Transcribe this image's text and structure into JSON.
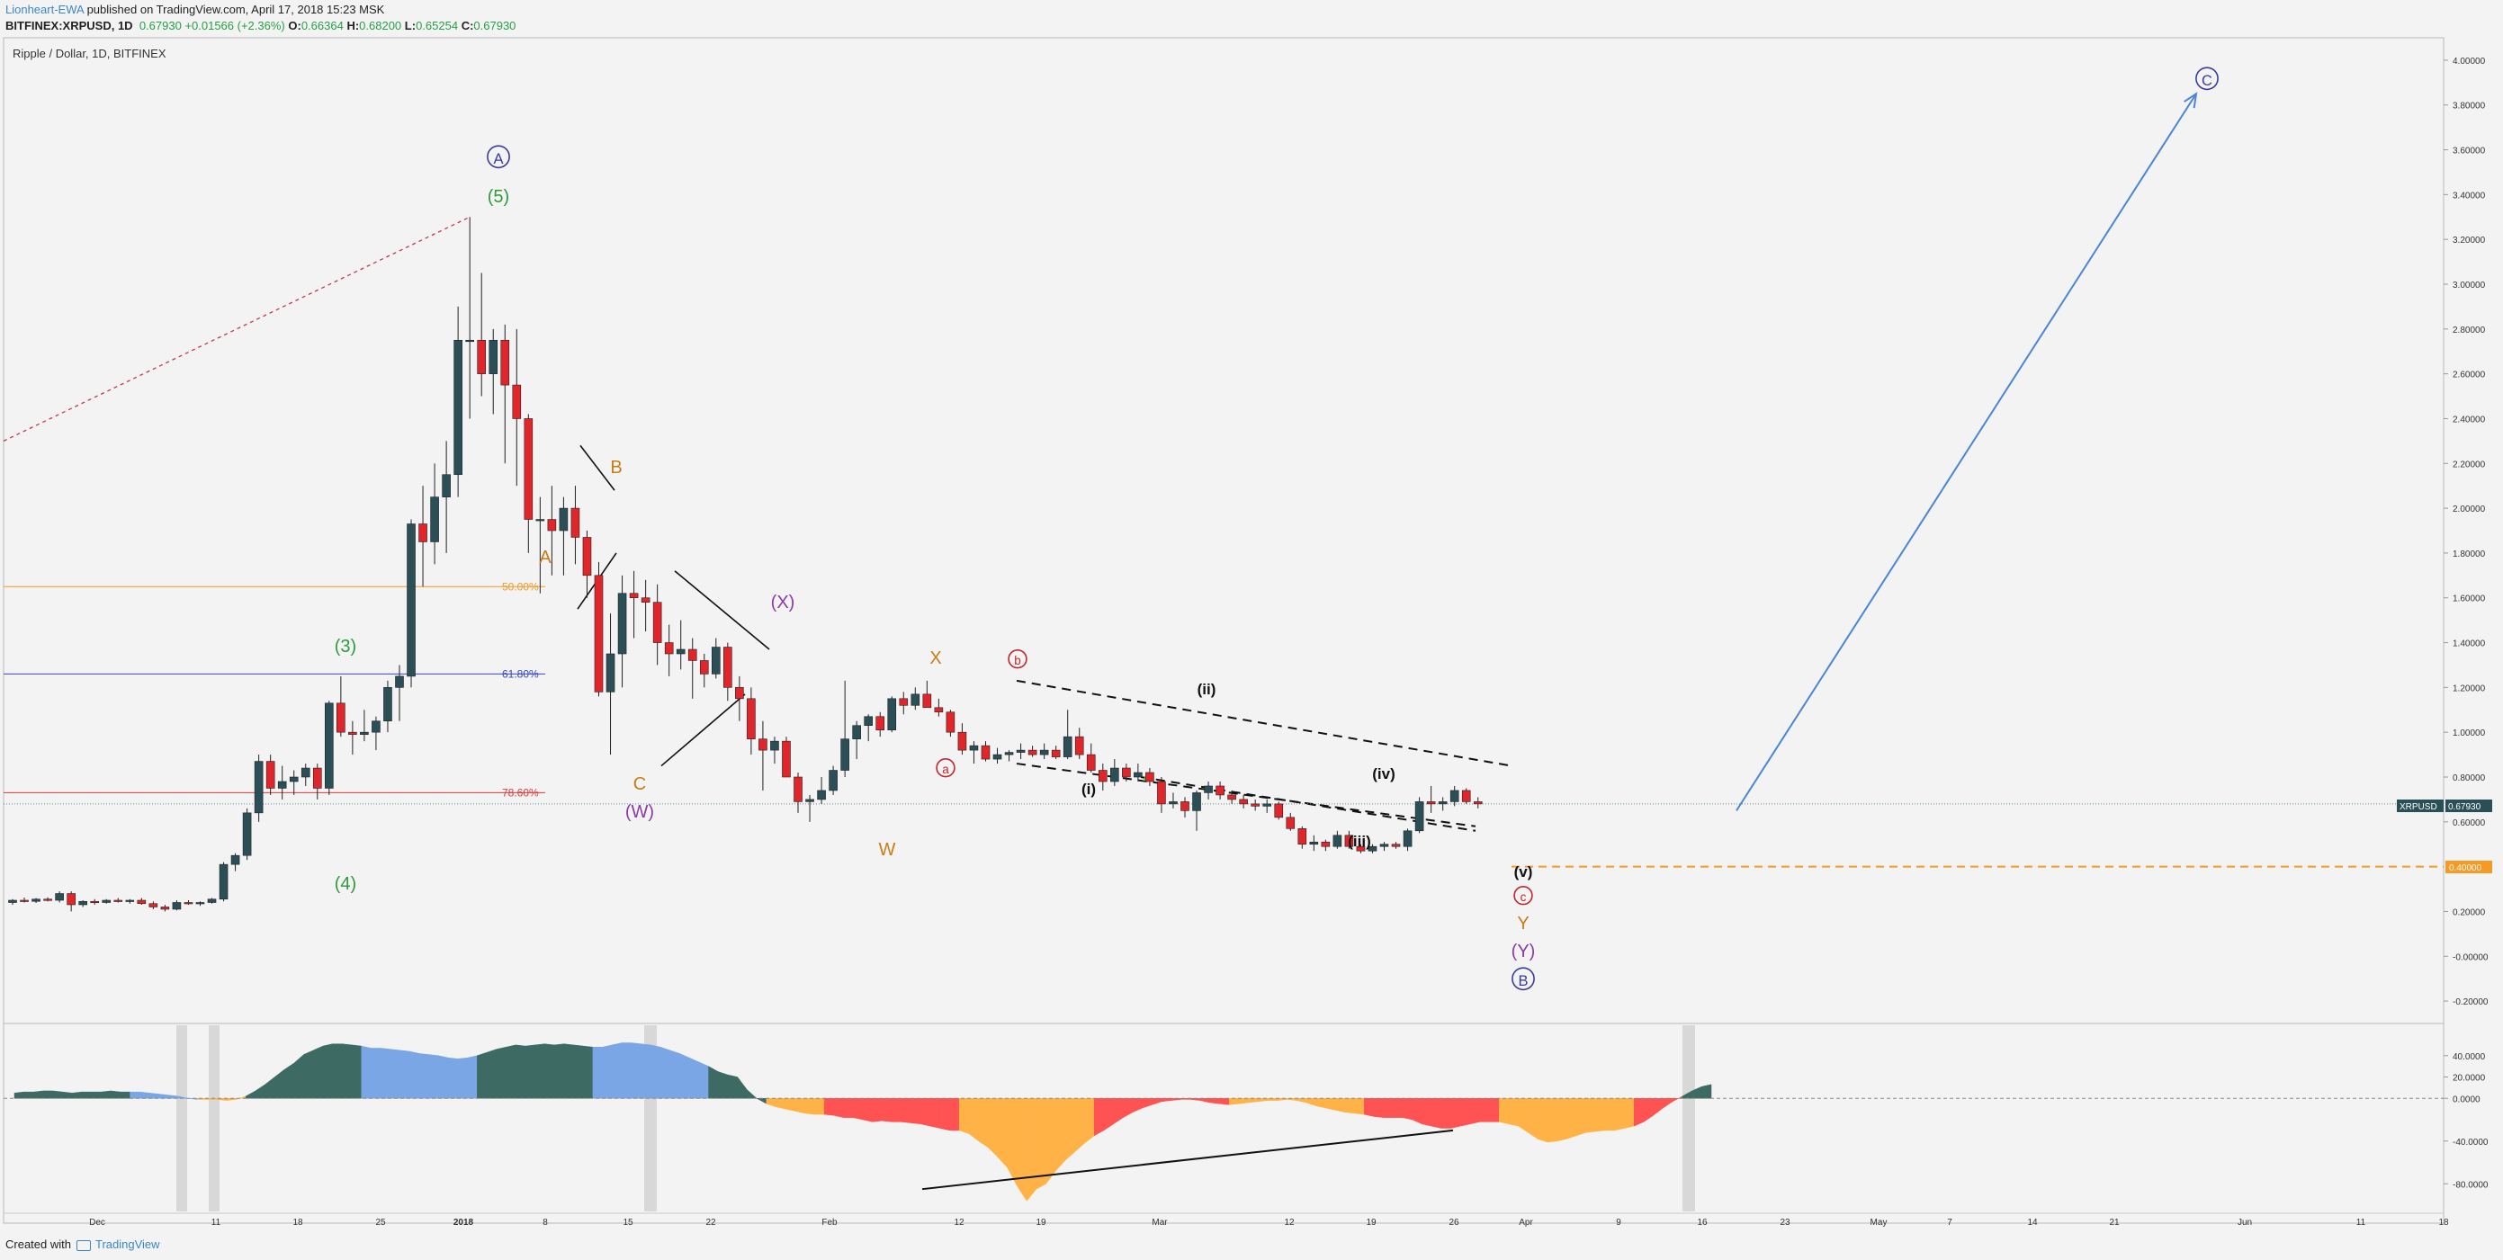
{
  "header": {
    "author": "Lionheart-EWA",
    "published": "published on TradingView.com, April 17, 2018 15:23 MSK",
    "symbol": "BITFINEX:XRPUSD, 1D",
    "last": "0.67930",
    "change": "+0.01566 (+2.36%)",
    "o_label": "O:",
    "o": "0.66364",
    "h_label": "H:",
    "h": "0.68200",
    "l_label": "L:",
    "l": "0.65254",
    "c_label": "C:",
    "c": "0.67930"
  },
  "chart_title": "Ripple / Dollar, 1D, BITFINEX",
  "footer": {
    "created": "Created with",
    "brand": "TradingView"
  },
  "colors": {
    "bull": "#2b4f57",
    "bear": "#e0262b",
    "background": "#f3f3f3",
    "fib50": "#f59a23",
    "fib618": "#3447c9",
    "fib786": "#e03a3a",
    "arrow": "#4a86d6",
    "support": "#f59a23",
    "osc_pos_strong": "#3d6a63",
    "osc_pos_weak": "#7aa6e6",
    "osc_neg_strong": "#ff5252",
    "osc_neg_weak": "#ffb347"
  },
  "chart_data": {
    "type": "candlestick",
    "title": "Ripple / Dollar, 1D, BITFINEX",
    "ylim": [
      -0.3,
      4.1
    ],
    "y_ticks": [
      "4.00000",
      "3.80000",
      "3.60000",
      "3.40000",
      "3.20000",
      "3.00000",
      "2.80000",
      "2.60000",
      "2.40000",
      "2.20000",
      "2.00000",
      "1.80000",
      "1.60000",
      "1.40000",
      "1.20000",
      "1.00000",
      "0.80000",
      "0.60000",
      "0.20000",
      "-0.00000",
      "-0.20000"
    ],
    "x_ticks": [
      "Dec",
      "11",
      "18",
      "25",
      "2018",
      "8",
      "15",
      "22",
      "Feb",
      "12",
      "19",
      "Mar",
      "12",
      "19",
      "26",
      "Apr",
      "9",
      "16",
      "23",
      "May",
      "7",
      "14",
      "21",
      "Jun",
      "11",
      "18"
    ],
    "last_price_label": "XRPUSD",
    "last_price": "0.67930",
    "support_level": "0.40000",
    "fib_levels": [
      {
        "label": "50.00%",
        "value": 1.65
      },
      {
        "label": "61.80%",
        "value": 1.26
      },
      {
        "label": "78.60%",
        "value": 0.73
      }
    ],
    "ohlc": [
      [
        0.24,
        0.255,
        0.23,
        0.25
      ],
      [
        0.25,
        0.262,
        0.24,
        0.245
      ],
      [
        0.245,
        0.26,
        0.238,
        0.255
      ],
      [
        0.255,
        0.263,
        0.245,
        0.25
      ],
      [
        0.25,
        0.29,
        0.24,
        0.28
      ],
      [
        0.28,
        0.29,
        0.2,
        0.23
      ],
      [
        0.23,
        0.25,
        0.22,
        0.245
      ],
      [
        0.245,
        0.255,
        0.23,
        0.24
      ],
      [
        0.24,
        0.255,
        0.235,
        0.25
      ],
      [
        0.25,
        0.26,
        0.24,
        0.245
      ],
      [
        0.245,
        0.255,
        0.235,
        0.25
      ],
      [
        0.25,
        0.26,
        0.23,
        0.235
      ],
      [
        0.235,
        0.245,
        0.21,
        0.22
      ],
      [
        0.22,
        0.23,
        0.2,
        0.21
      ],
      [
        0.21,
        0.25,
        0.205,
        0.24
      ],
      [
        0.24,
        0.25,
        0.23,
        0.235
      ],
      [
        0.235,
        0.245,
        0.225,
        0.24
      ],
      [
        0.24,
        0.26,
        0.235,
        0.255
      ],
      [
        0.255,
        0.42,
        0.245,
        0.41
      ],
      [
        0.41,
        0.46,
        0.38,
        0.45
      ],
      [
        0.45,
        0.66,
        0.43,
        0.64
      ],
      [
        0.64,
        0.9,
        0.6,
        0.87
      ],
      [
        0.87,
        0.9,
        0.72,
        0.75
      ],
      [
        0.75,
        0.85,
        0.7,
        0.78
      ],
      [
        0.78,
        0.83,
        0.72,
        0.8
      ],
      [
        0.8,
        0.86,
        0.76,
        0.84
      ],
      [
        0.84,
        0.86,
        0.7,
        0.75
      ],
      [
        0.75,
        1.14,
        0.72,
        1.13
      ],
      [
        1.13,
        1.25,
        0.98,
        1.0
      ],
      [
        1.0,
        1.05,
        0.9,
        0.99
      ],
      [
        0.99,
        1.1,
        0.96,
        1.0
      ],
      [
        1.0,
        1.07,
        0.92,
        1.05
      ],
      [
        1.05,
        1.23,
        1.0,
        1.2
      ],
      [
        1.2,
        1.3,
        1.05,
        1.25
      ],
      [
        1.25,
        1.95,
        1.2,
        1.93
      ],
      [
        1.93,
        2.1,
        1.65,
        1.85
      ],
      [
        1.85,
        2.2,
        1.75,
        2.05
      ],
      [
        2.05,
        2.3,
        1.8,
        2.15
      ],
      [
        2.15,
        2.9,
        2.05,
        2.75
      ],
      [
        2.75,
        3.3,
        2.4,
        2.75
      ],
      [
        2.75,
        3.05,
        2.5,
        2.6
      ],
      [
        2.6,
        2.8,
        2.42,
        2.75
      ],
      [
        2.75,
        2.82,
        2.2,
        2.55
      ],
      [
        2.55,
        2.8,
        2.1,
        2.4
      ],
      [
        2.4,
        2.42,
        1.8,
        1.95
      ],
      [
        1.95,
        2.05,
        1.62,
        1.95
      ],
      [
        1.95,
        2.1,
        1.7,
        1.9
      ],
      [
        1.9,
        2.05,
        1.7,
        2.0
      ],
      [
        2.0,
        2.1,
        1.75,
        1.87
      ],
      [
        1.87,
        1.9,
        1.6,
        1.7
      ],
      [
        1.7,
        1.76,
        1.16,
        1.18
      ],
      [
        1.18,
        1.53,
        0.9,
        1.35
      ],
      [
        1.35,
        1.7,
        1.2,
        1.62
      ],
      [
        1.62,
        1.72,
        1.42,
        1.6
      ],
      [
        1.6,
        1.68,
        1.45,
        1.58
      ],
      [
        1.58,
        1.66,
        1.3,
        1.4
      ],
      [
        1.4,
        1.48,
        1.25,
        1.35
      ],
      [
        1.35,
        1.5,
        1.28,
        1.37
      ],
      [
        1.37,
        1.42,
        1.15,
        1.32
      ],
      [
        1.32,
        1.35,
        1.2,
        1.26
      ],
      [
        1.26,
        1.42,
        1.24,
        1.38
      ],
      [
        1.38,
        1.4,
        1.14,
        1.2
      ],
      [
        1.2,
        1.25,
        1.05,
        1.15
      ],
      [
        1.15,
        1.2,
        0.9,
        0.97
      ],
      [
        0.97,
        1.05,
        0.74,
        0.92
      ],
      [
        0.92,
        0.98,
        0.86,
        0.96
      ],
      [
        0.96,
        0.98,
        0.8,
        0.8
      ],
      [
        0.8,
        0.82,
        0.64,
        0.69
      ],
      [
        0.69,
        0.72,
        0.6,
        0.7
      ],
      [
        0.7,
        0.8,
        0.68,
        0.74
      ],
      [
        0.74,
        0.85,
        0.72,
        0.83
      ],
      [
        0.83,
        1.23,
        0.8,
        0.97
      ],
      [
        0.97,
        1.05,
        0.88,
        1.03
      ],
      [
        1.03,
        1.08,
        0.96,
        1.07
      ],
      [
        1.07,
        1.09,
        0.98,
        1.01
      ],
      [
        1.01,
        1.16,
        1.0,
        1.15
      ],
      [
        1.15,
        1.18,
        1.08,
        1.12
      ],
      [
        1.12,
        1.2,
        1.1,
        1.17
      ],
      [
        1.17,
        1.23,
        1.12,
        1.11
      ],
      [
        1.11,
        1.15,
        1.07,
        1.09
      ],
      [
        1.09,
        1.1,
        0.98,
        1.0
      ],
      [
        1.0,
        1.04,
        0.9,
        0.92
      ],
      [
        0.92,
        0.96,
        0.86,
        0.94
      ],
      [
        0.94,
        0.96,
        0.87,
        0.88
      ],
      [
        0.88,
        0.93,
        0.86,
        0.9
      ],
      [
        0.9,
        0.92,
        0.87,
        0.91
      ],
      [
        0.91,
        0.95,
        0.88,
        0.92
      ],
      [
        0.92,
        0.94,
        0.89,
        0.9
      ],
      [
        0.9,
        0.95,
        0.88,
        0.92
      ],
      [
        0.92,
        0.94,
        0.88,
        0.89
      ],
      [
        0.89,
        1.1,
        0.88,
        0.98
      ],
      [
        0.98,
        1.02,
        0.88,
        0.9
      ],
      [
        0.9,
        0.95,
        0.82,
        0.83
      ],
      [
        0.83,
        0.86,
        0.74,
        0.78
      ],
      [
        0.78,
        0.88,
        0.76,
        0.84
      ],
      [
        0.84,
        0.86,
        0.78,
        0.8
      ],
      [
        0.8,
        0.86,
        0.78,
        0.82
      ],
      [
        0.82,
        0.84,
        0.76,
        0.78
      ],
      [
        0.78,
        0.8,
        0.64,
        0.68
      ],
      [
        0.68,
        0.73,
        0.66,
        0.69
      ],
      [
        0.69,
        0.71,
        0.62,
        0.65
      ],
      [
        0.65,
        0.74,
        0.56,
        0.73
      ],
      [
        0.73,
        0.78,
        0.7,
        0.76
      ],
      [
        0.76,
        0.78,
        0.7,
        0.72
      ],
      [
        0.72,
        0.74,
        0.68,
        0.7
      ],
      [
        0.7,
        0.72,
        0.66,
        0.68
      ],
      [
        0.68,
        0.7,
        0.65,
        0.67
      ],
      [
        0.67,
        0.7,
        0.64,
        0.68
      ],
      [
        0.68,
        0.69,
        0.61,
        0.62
      ],
      [
        0.62,
        0.64,
        0.56,
        0.57
      ],
      [
        0.57,
        0.58,
        0.48,
        0.5
      ],
      [
        0.5,
        0.54,
        0.47,
        0.51
      ],
      [
        0.51,
        0.52,
        0.47,
        0.49
      ],
      [
        0.49,
        0.56,
        0.48,
        0.54
      ],
      [
        0.54,
        0.56,
        0.48,
        0.49
      ],
      [
        0.49,
        0.5,
        0.46,
        0.47
      ],
      [
        0.47,
        0.5,
        0.46,
        0.49
      ],
      [
        0.49,
        0.51,
        0.47,
        0.5
      ],
      [
        0.5,
        0.51,
        0.48,
        0.49
      ],
      [
        0.49,
        0.57,
        0.47,
        0.56
      ],
      [
        0.56,
        0.71,
        0.55,
        0.69
      ],
      [
        0.69,
        0.76,
        0.64,
        0.68
      ],
      [
        0.68,
        0.71,
        0.65,
        0.69
      ],
      [
        0.69,
        0.76,
        0.67,
        0.74
      ],
      [
        0.74,
        0.75,
        0.68,
        0.69
      ],
      [
        0.69,
        0.71,
        0.66,
        0.68
      ]
    ],
    "projection": {
      "to_value": 3.85
    },
    "oscillator": {
      "ylim": [
        -100,
        60
      ],
      "y_ticks": [
        "40.0000",
        "20.0000",
        "0.0000",
        "-40.0000",
        "-80.0000"
      ],
      "values": [
        5,
        6,
        6,
        7,
        7,
        6,
        5,
        6,
        6,
        6,
        7,
        6,
        6,
        6,
        5,
        4,
        3,
        2,
        0,
        -1,
        -1,
        -1,
        -2,
        -1,
        2,
        7,
        13,
        20,
        27,
        33,
        41,
        45,
        49,
        51,
        51,
        50,
        49,
        47,
        47,
        46,
        45,
        44,
        42,
        41,
        40,
        38,
        37,
        38,
        40,
        43,
        46,
        48,
        50,
        49,
        50,
        51,
        50,
        51,
        50,
        49,
        48,
        48,
        50,
        52,
        52,
        51,
        50,
        48,
        45,
        42,
        38,
        34,
        30,
        25,
        22,
        20,
        8,
        0,
        -5,
        -8,
        -10,
        -12,
        -14,
        -15,
        -15,
        -16,
        -18,
        -18,
        -20,
        -22,
        -21,
        -22,
        -22,
        -23,
        -24,
        -26,
        -28,
        -30,
        -30,
        -33,
        -40,
        -46,
        -55,
        -65,
        -82,
        -96,
        -85,
        -80,
        -68,
        -58,
        -50,
        -42,
        -35,
        -30,
        -24,
        -18,
        -13,
        -9,
        -6,
        -3,
        -2,
        -1,
        -1,
        -2,
        -4,
        -5,
        -6,
        -5,
        -4,
        -3,
        -2,
        -2,
        -1,
        -2,
        -4,
        -7,
        -9,
        -11,
        -13,
        -14,
        -15,
        -17,
        -18,
        -18,
        -18,
        -20,
        -24,
        -26,
        -28,
        -28,
        -26,
        -24,
        -22,
        -22,
        -22,
        -24,
        -26,
        -32,
        -38,
        -41,
        -40,
        -38,
        -35,
        -32,
        -31,
        -30,
        -30,
        -28,
        -26,
        -22,
        -16,
        -9,
        -3,
        2,
        7,
        11,
        13
      ]
    },
    "annotations": [
      {
        "text": "A",
        "circled": true
      },
      {
        "text": "(5)"
      },
      {
        "text": "B"
      },
      {
        "text": "A"
      },
      {
        "text": "(X)"
      },
      {
        "text": "(3)"
      },
      {
        "text": "X"
      },
      {
        "text": "b",
        "circled": true
      },
      {
        "text": "(ii)"
      },
      {
        "text": "a",
        "circled": true
      },
      {
        "text": "(i)"
      },
      {
        "text": "(iv)"
      },
      {
        "text": "(iii)"
      },
      {
        "text": "C"
      },
      {
        "text": "(W)"
      },
      {
        "text": "W"
      },
      {
        "text": "(4)"
      },
      {
        "text": "(v)"
      },
      {
        "text": "c",
        "circled": true
      },
      {
        "text": "Y"
      },
      {
        "text": "(Y)"
      },
      {
        "text": "B",
        "circled": true
      },
      {
        "text": "C",
        "circled": true
      }
    ]
  }
}
